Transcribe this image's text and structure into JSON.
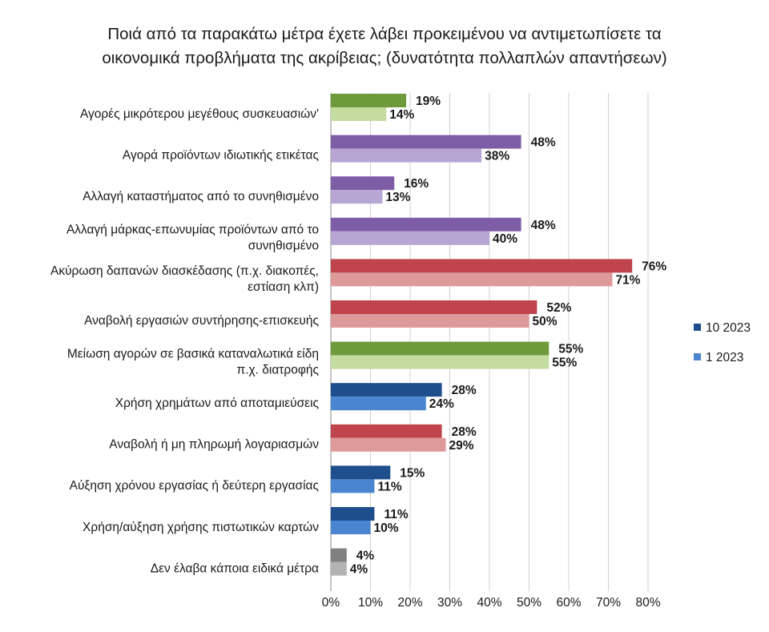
{
  "chart_data": {
    "type": "bar",
    "orientation": "horizontal",
    "title": [
      "Ποιά από τα παρακάτω μέτρα έχετε λάβει προκειμένου να αντιμετωπίσετε τα",
      "οικονομικά προβλήματα της ακρίβειας; (δυνατότητα πολλαπλών απαντήσεων)"
    ],
    "xlabel": "",
    "ylabel": "",
    "xlim": [
      0,
      80
    ],
    "x_ticks": [
      "0%",
      "10%",
      "20%",
      "30%",
      "40%",
      "50%",
      "60%",
      "70%",
      "80%"
    ],
    "grid": true,
    "legend_position": "right",
    "series": [
      {
        "name": "10 2023",
        "color": "#1F4E8C"
      },
      {
        "name": "1 2023",
        "color": "#4A86D0"
      }
    ],
    "categories": [
      {
        "label": [
          "Αγορές μικρότερου μεγέθους συσκευασιών'"
        ],
        "values": [
          19,
          14
        ],
        "labels": [
          "19%",
          "14%"
        ],
        "colors": [
          "#6E9A3C",
          "#C5DCA0"
        ]
      },
      {
        "label": [
          "Αγορά προϊόντων ιδιωτικής ετικέτας"
        ],
        "values": [
          48,
          38
        ],
        "labels": [
          "48%",
          "38%"
        ],
        "colors": [
          "#7E5DA7",
          "#B7A5D4"
        ]
      },
      {
        "label": [
          "Αλλαγή καταστήματος από το συνηθισμένο"
        ],
        "values": [
          16,
          13
        ],
        "labels": [
          "16%",
          "13%"
        ],
        "colors": [
          "#7E5DA7",
          "#B7A5D4"
        ]
      },
      {
        "label": [
          "Αλλαγή μάρκας-επωνυμίας προϊόντων από το",
          "συνηθισμένο"
        ],
        "values": [
          48,
          40
        ],
        "labels": [
          "48%",
          "40%"
        ],
        "colors": [
          "#7E5DA7",
          "#B7A5D4"
        ]
      },
      {
        "label": [
          "Ακύρωση δαπανών διασκέδασης (π.χ. διακοπές,",
          "εστίαση κλπ)"
        ],
        "values": [
          76,
          71
        ],
        "labels": [
          "76%",
          "71%"
        ],
        "colors": [
          "#C0444B",
          "#DE9A9A"
        ]
      },
      {
        "label": [
          "Αναβολή εργασιών συντήρησης-επισκευής"
        ],
        "values": [
          52,
          50
        ],
        "labels": [
          "52%",
          "50%"
        ],
        "colors": [
          "#C0444B",
          "#DE9A9A"
        ]
      },
      {
        "label": [
          "Μείωση αγορών σε βασικά καταναλωτικά είδη",
          "π.χ. διατροφής"
        ],
        "values": [
          55,
          55
        ],
        "labels": [
          "55%",
          "55%"
        ],
        "colors": [
          "#6E9A3C",
          "#C5DCA0"
        ]
      },
      {
        "label": [
          "Χρήση χρημάτων από αποταμιεύσεις"
        ],
        "values": [
          28,
          24
        ],
        "labels": [
          "28%",
          "24%"
        ],
        "colors": [
          "#1F4E8C",
          "#4A86D0"
        ]
      },
      {
        "label": [
          "Αναβολή ή μη πληρωμή λογαριασμών"
        ],
        "values": [
          28,
          29
        ],
        "labels": [
          "28%",
          "29%"
        ],
        "colors": [
          "#C0444B",
          "#DE9A9A"
        ]
      },
      {
        "label": [
          "Αύξηση χρόνου εργασίας ή δεύτερη εργασίας"
        ],
        "values": [
          15,
          11
        ],
        "labels": [
          "15%",
          "11%"
        ],
        "colors": [
          "#1F4E8C",
          "#4A86D0"
        ]
      },
      {
        "label": [
          "Χρήση/αύξηση χρήσης πιστωτικών καρτών"
        ],
        "values": [
          11,
          10
        ],
        "labels": [
          "11%",
          "10%"
        ],
        "colors": [
          "#1F4E8C",
          "#4A86D0"
        ]
      },
      {
        "label": [
          "Δεν έλαβα κάποια ειδικά μέτρα"
        ],
        "values": [
          4,
          4
        ],
        "labels": [
          "4%",
          "4%"
        ],
        "colors": [
          "#808080",
          "#B3B3B3"
        ]
      }
    ]
  }
}
